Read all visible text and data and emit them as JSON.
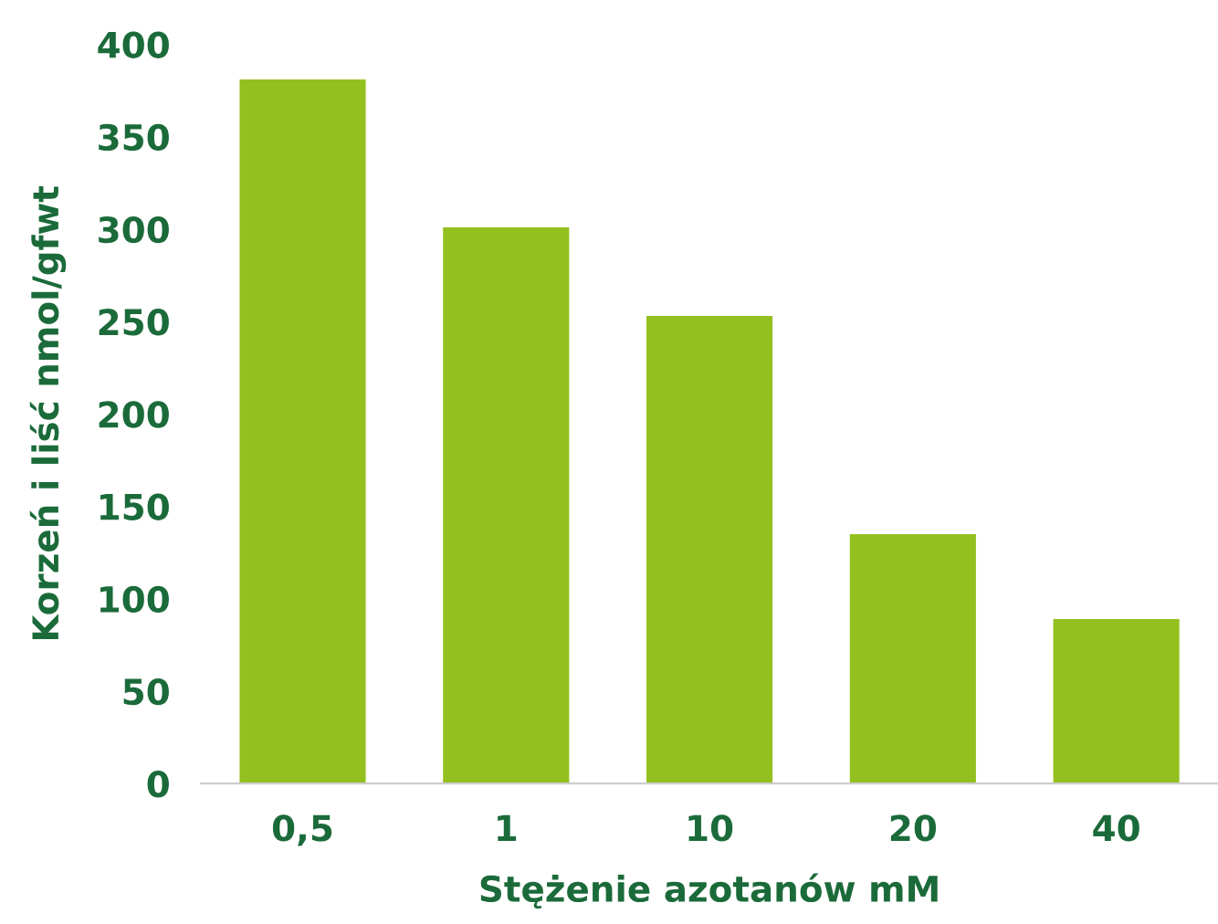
{
  "chart_data": {
    "type": "bar",
    "xlabel": "Stężenie azotanów mM",
    "ylabel": "Korzeń i liść nmol/gfwt",
    "categories": [
      "0,5",
      "1",
      "10",
      "20",
      "40"
    ],
    "values": [
      381,
      301,
      253,
      135,
      89
    ],
    "color": "#93c01f",
    "ylim": [
      0,
      400
    ],
    "yticks": [
      0,
      50,
      100,
      150,
      200,
      250,
      300,
      350,
      400
    ],
    "grid": false
  }
}
